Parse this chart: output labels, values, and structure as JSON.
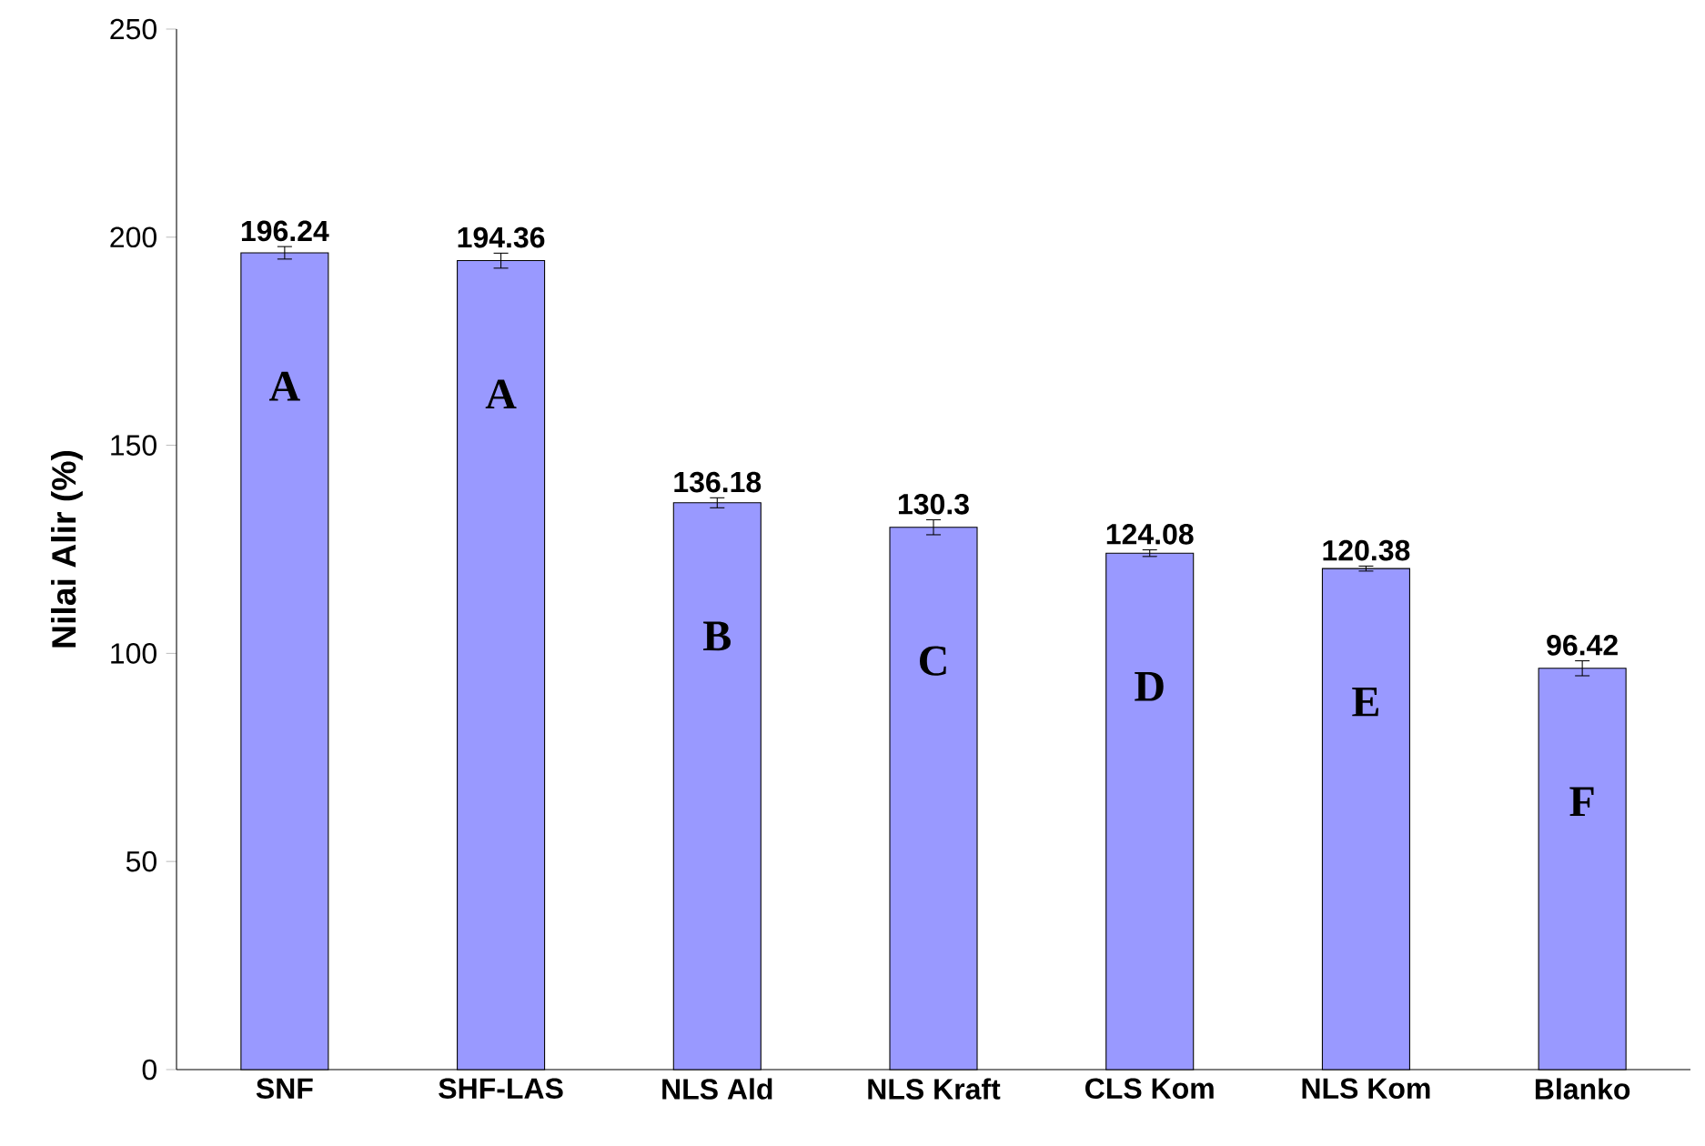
{
  "chart_data": {
    "type": "bar",
    "ylabel": "Nilai Alir (%)",
    "categories": [
      "SNF",
      "SHF-LAS",
      "NLS Ald",
      "NLS Kraft",
      "CLS Kom",
      "NLS Kom",
      "Blanko"
    ],
    "values": [
      196.24,
      194.36,
      136.18,
      130.3,
      124.08,
      120.38,
      96.42
    ],
    "errors": [
      1.5,
      1.8,
      1.2,
      1.8,
      0.8,
      0.6,
      1.8
    ],
    "color": "#9999ff",
    "ylim": [
      0,
      250
    ],
    "yticks": [
      0,
      50,
      100,
      150,
      200,
      250
    ],
    "data_labels": true,
    "grid": false,
    "annotations": [
      "A",
      "A",
      "B",
      "C",
      "D",
      "E",
      "F"
    ]
  }
}
